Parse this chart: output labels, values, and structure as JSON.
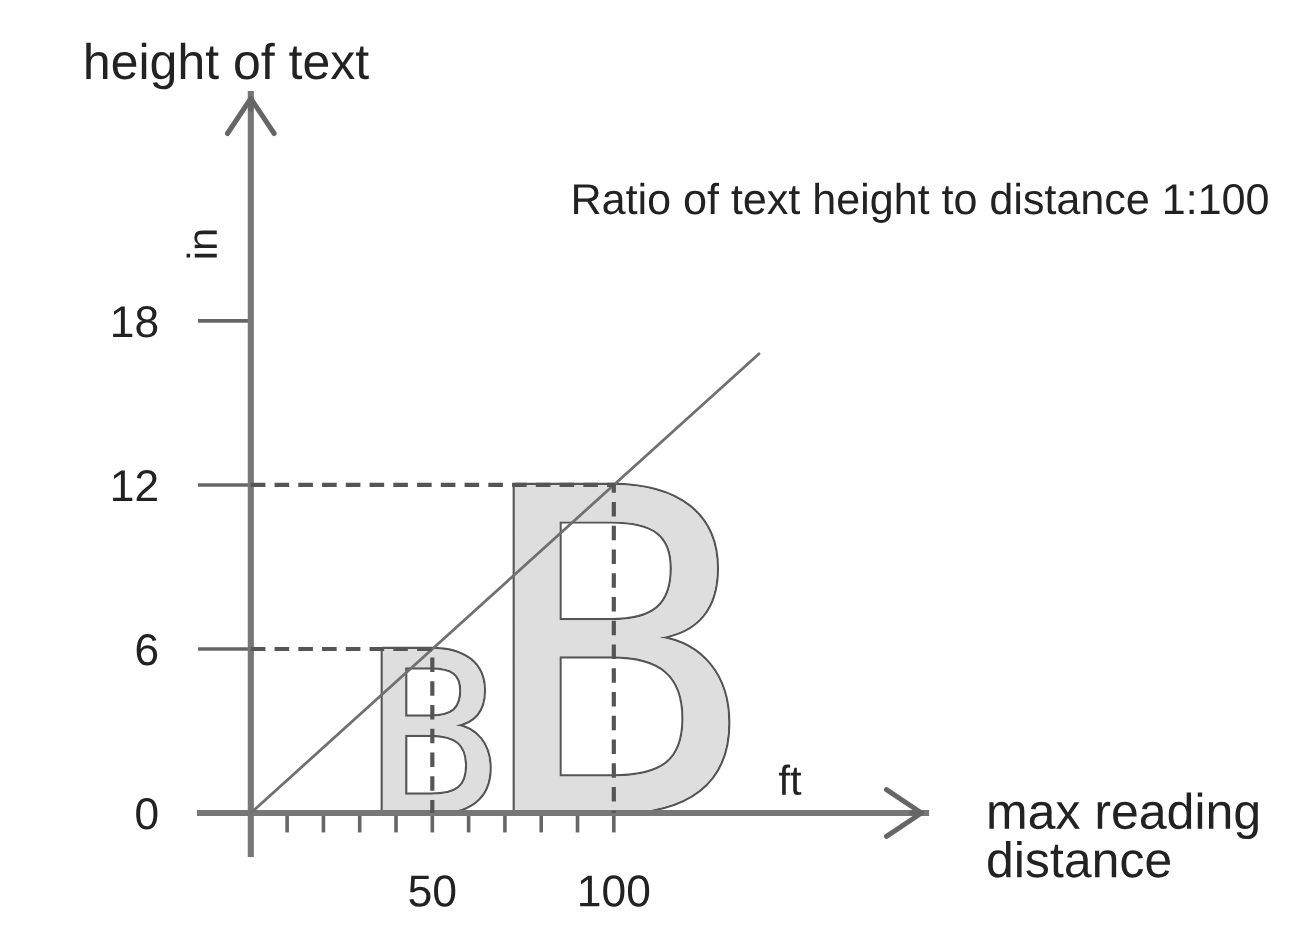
{
  "chart_data": {
    "type": "line",
    "title": "Ratio of text height to distance 1:100",
    "xlabel": "max reading distance",
    "ylabel": "height of text",
    "series": [
      {
        "x": [
          0,
          140
        ],
        "values": [
          0,
          16.8
        ],
        "color": "#707070"
      },
      {
        "x": [
          0,
          50,
          50
        ],
        "values": [
          6,
          6,
          0
        ],
        "color": "#555555",
        "line_style": "dashed"
      },
      {
        "x": [
          0,
          100,
          100
        ],
        "values": [
          12,
          12,
          0
        ],
        "color": "#555555",
        "line_style": "dashed"
      }
    ],
    "xlim": [
      -14,
      186
    ],
    "ylim": [
      -1.5,
      26.3
    ],
    "xticks": [
      {
        "value": 10,
        "label": null
      },
      {
        "value": 20,
        "label": null
      },
      {
        "value": 30,
        "label": null
      },
      {
        "value": 40,
        "label": null
      },
      50,
      {
        "value": 60,
        "label": null
      },
      {
        "value": 70,
        "label": null
      },
      {
        "value": 80,
        "label": null
      },
      {
        "value": 90,
        "label": null
      },
      100
    ],
    "yticks": [
      0,
      6,
      12,
      18
    ],
    "annotations": [
      "in",
      "ft",
      {
        "text": "B",
        "x": 50,
        "y": 6
      },
      {
        "text": "B",
        "x": 100,
        "y": 12
      }
    ]
  }
}
